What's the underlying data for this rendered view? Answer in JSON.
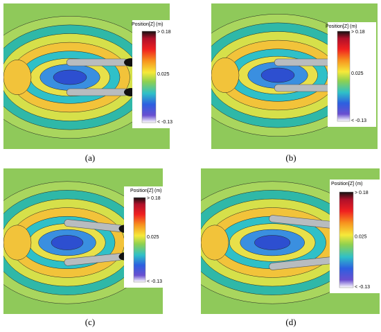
{
  "panels": [
    {
      "label": "(a)",
      "colorbar": {
        "title": "Position[Z] (m)",
        "max": "> 0.18",
        "mid": "0.025",
        "min": "< -0.13"
      }
    },
    {
      "label": "(b)",
      "colorbar": {
        "title": "Position[Z] (m)",
        "max": "> 0.18",
        "mid": "0.025",
        "min": "< -0.13"
      }
    },
    {
      "label": "(c)",
      "colorbar": {
        "title": "Position[Z] (m)",
        "max": "> 0.18",
        "mid": "0.025",
        "min": "< -0.13"
      }
    },
    {
      "label": "(d)",
      "colorbar": {
        "title": "Position[Z] (m)",
        "max": "> 0.18",
        "mid": "0.025",
        "min": "< -0.13"
      }
    }
  ]
}
